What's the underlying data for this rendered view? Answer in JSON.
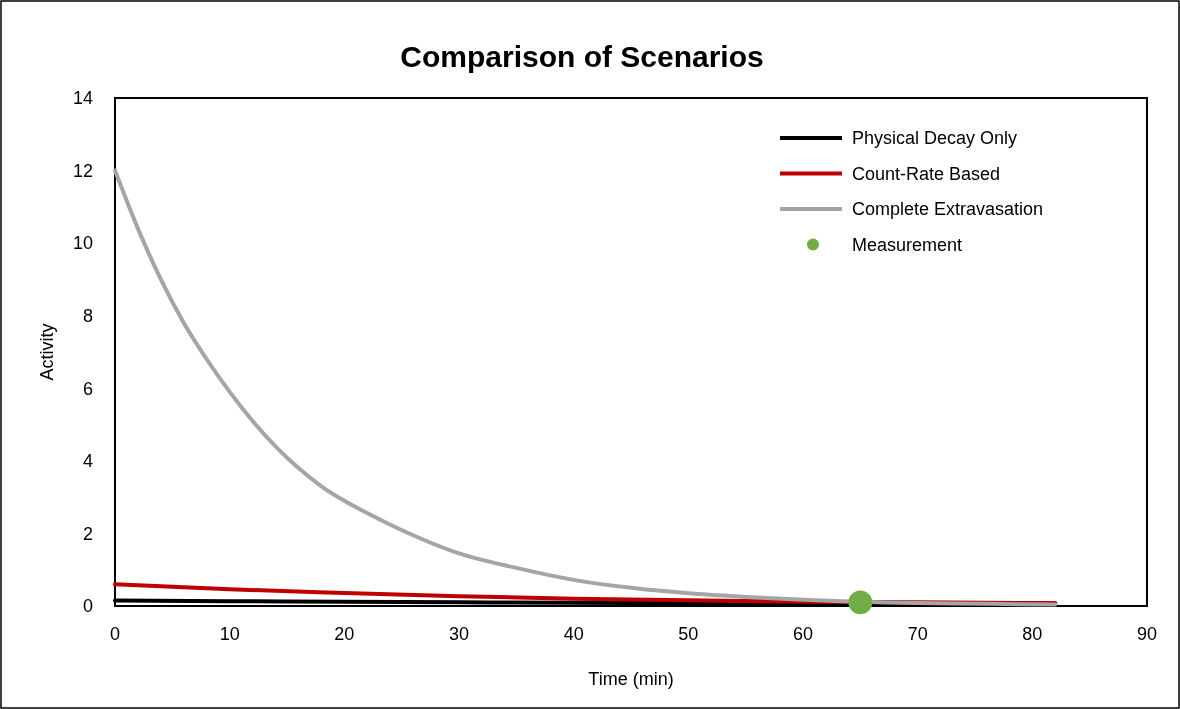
{
  "chart_data": {
    "type": "line",
    "title": "Comparison of Scenarios",
    "xlabel": "Time (min)",
    "ylabel": "Activity",
    "xlim": [
      0,
      90
    ],
    "xticks": [
      0,
      10,
      20,
      30,
      40,
      50,
      60,
      70,
      80,
      90
    ],
    "ylim": [
      0,
      14
    ],
    "yticks": [
      0,
      2,
      4,
      6,
      8,
      10,
      12,
      14
    ],
    "grid": false,
    "legend": "top right",
    "marker": "none",
    "line_style": "solid",
    "series": [
      {
        "name": "Physical Decay Only",
        "color": "#000000",
        "x": [
          0,
          10,
          20,
          30,
          40,
          50,
          60,
          70,
          82
        ],
        "values": [
          0.15,
          0.13,
          0.12,
          0.1,
          0.09,
          0.08,
          0.07,
          0.06,
          0.05
        ]
      },
      {
        "name": "Count-Rate Based",
        "color": "#c00000",
        "x": [
          0,
          10,
          20,
          30,
          40,
          50,
          60,
          70,
          82
        ],
        "values": [
          0.6,
          0.46,
          0.36,
          0.27,
          0.2,
          0.16,
          0.12,
          0.1,
          0.08
        ]
      },
      {
        "name": "Complete Extravasation",
        "color": "#a5a5a5",
        "x": [
          0,
          2,
          4,
          6,
          8,
          10,
          12,
          14,
          16,
          18,
          20,
          23,
          26,
          30,
          35,
          40,
          45,
          50,
          55,
          60,
          65,
          70,
          76,
          82
        ],
        "values": [
          12,
          10.4,
          9.0,
          7.8,
          6.8,
          5.9,
          5.1,
          4.4,
          3.8,
          3.3,
          2.9,
          2.4,
          1.95,
          1.45,
          1.05,
          0.72,
          0.5,
          0.35,
          0.25,
          0.17,
          null,
          0.08,
          0.06,
          0.04
        ]
      },
      {
        "name": "Measurement",
        "type": "scatter",
        "marker": "circle",
        "color": "#70ad47",
        "x": [
          65
        ],
        "values": [
          0.1
        ]
      }
    ]
  }
}
